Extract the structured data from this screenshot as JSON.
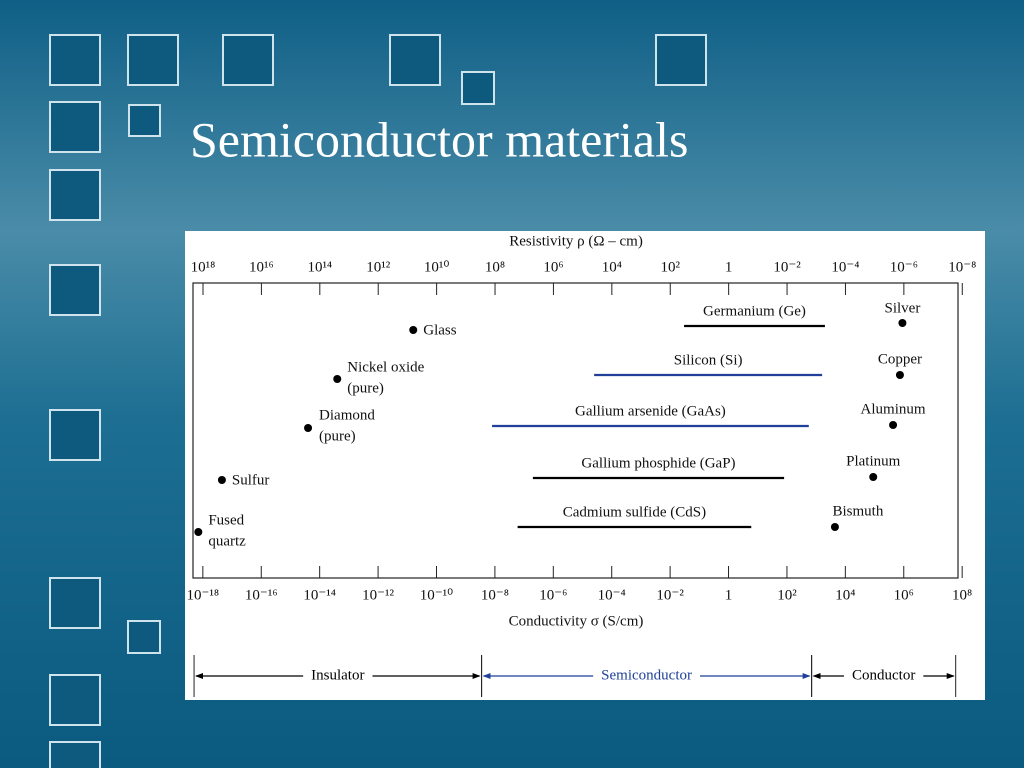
{
  "chart_data": {
    "type": "range",
    "title": "Semiconductor materials",
    "xlabel": "Conductivity σ (S/cm)",
    "x2label": "Resistivity ρ (Ω – cm)",
    "xscale": "log",
    "xlim": [
      4.6e-19,
      72000000.0
    ],
    "xticks": [
      {
        "value": 1e-18,
        "label": "10⁻¹⁸"
      },
      {
        "value": 1e-16,
        "label": "10⁻¹⁶"
      },
      {
        "value": 1e-14,
        "label": "10⁻¹⁴"
      },
      {
        "value": 1e-12,
        "label": "10⁻¹²"
      },
      {
        "value": 1e-10,
        "label": "10⁻¹⁰"
      },
      {
        "value": 1e-08,
        "label": "10⁻⁸"
      },
      {
        "value": 1e-06,
        "label": "10⁻⁶"
      },
      {
        "value": 0.0001,
        "label": "10⁻⁴"
      },
      {
        "value": 0.01,
        "label": "10⁻²"
      },
      1,
      {
        "value": 100,
        "label": "10²"
      },
      {
        "value": 10000.0,
        "label": "10⁴"
      },
      {
        "value": 1000000.0,
        "label": "10⁶"
      },
      {
        "value": 100000000.0,
        "label": "10⁸"
      }
    ],
    "x2lim": [
      2.2e+18,
      1.4e-08
    ],
    "x2ticks": [
      {
        "value": 1e+18,
        "label": "10¹⁸"
      },
      {
        "value": 1e+16,
        "label": "10¹⁶"
      },
      {
        "value": 100000000000000.0,
        "label": "10¹⁴"
      },
      {
        "value": 1000000000000.0,
        "label": "10¹²"
      },
      {
        "value": 10000000000.0,
        "label": "10¹⁰"
      },
      {
        "value": 100000000.0,
        "label": "10⁸"
      },
      {
        "value": 1000000.0,
        "label": "10⁶"
      },
      {
        "value": 10000.0,
        "label": "10⁴"
      },
      {
        "value": 100,
        "label": "10²"
      },
      1,
      {
        "value": 0.01,
        "label": "10⁻²"
      },
      {
        "value": 0.0001,
        "label": "10⁻⁴"
      },
      {
        "value": 1e-06,
        "label": "10⁻⁶"
      },
      {
        "value": 1e-08,
        "label": "10⁻⁸"
      }
    ],
    "ranges": [
      {
        "name": "Germanium (Ge)",
        "color": "#000000",
        "low": 0.03,
        "high": 2000
      },
      {
        "name": "Silicon (Si)",
        "color": "#1f3f99",
        "low": 2.5e-05,
        "high": 1600
      },
      {
        "name": "Gallium arsenide (GaAs)",
        "color": "#1f3f99",
        "low": 8e-09,
        "high": 560
      },
      {
        "name": "Gallium phosphide (GaP)",
        "color": "#000000",
        "low": 2e-07,
        "high": 80
      },
      {
        "name": "Cadmium sulfide (CdS)",
        "color": "#000000",
        "low": 6e-08,
        "high": 6
      }
    ],
    "points": [
      {
        "name": [
          "Glass"
        ],
        "value": 1.6e-11
      },
      {
        "name": [
          "Nickel oxide",
          "(pure)"
        ],
        "value": 4e-14
      },
      {
        "name": [
          "Diamond",
          "(pure)"
        ],
        "value": 4e-15
      },
      {
        "name": [
          "Sulfur"
        ],
        "value": 4.5e-18
      },
      {
        "name": [
          "Fused",
          "quartz"
        ],
        "value": 7e-19
      },
      {
        "name": [
          "Silver"
        ],
        "value": 900000.0
      },
      {
        "name": [
          "Copper"
        ],
        "value": 740000.0
      },
      {
        "name": [
          "Aluminum"
        ],
        "value": 430000.0
      },
      {
        "name": [
          "Platinum"
        ],
        "value": 90000.0
      },
      {
        "name": [
          "Bismuth"
        ],
        "value": 4400
      }
    ],
    "regions": [
      {
        "name": "Insulator",
        "color": "#000000",
        "from": 5e-19,
        "to": 3.5e-09
      },
      {
        "name": "Semiconductor",
        "color": "#1f3f99",
        "from": 3.5e-09,
        "to": 700
      },
      {
        "name": "Conductor",
        "color": "#000000",
        "from": 700,
        "to": 60000000.0
      }
    ]
  }
}
